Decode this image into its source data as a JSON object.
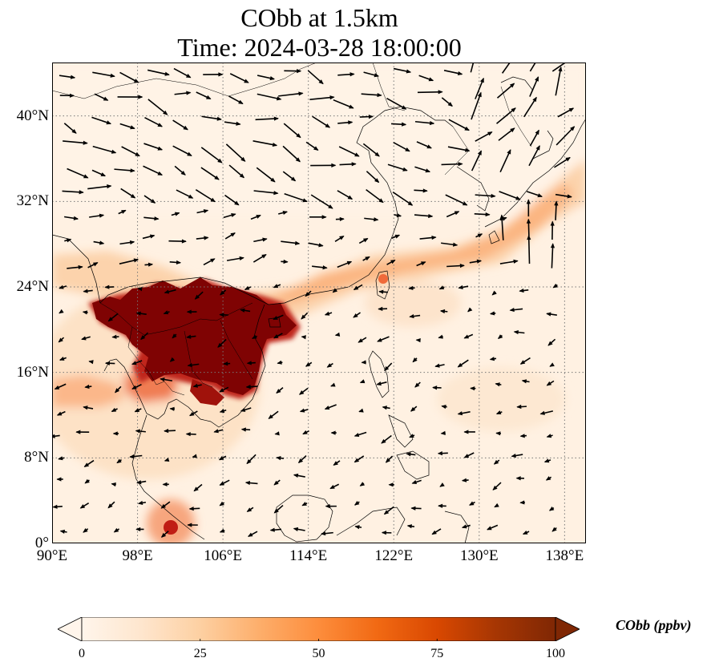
{
  "title": {
    "line1": "CObb at 1.5km",
    "line2": "Time: 2024-03-28 18:00:00"
  },
  "map": {
    "projection": "PlateCarree",
    "lon_range": [
      90,
      140
    ],
    "lat_range": [
      0,
      45
    ],
    "gridlines": "dotted",
    "lon_ticks": [
      "90°E",
      "98°E",
      "106°E",
      "114°E",
      "122°E",
      "130°E",
      "138°E"
    ],
    "lat_ticks": [
      "0°",
      "8°N",
      "16°N",
      "24°N",
      "32°N",
      "40°N"
    ],
    "lon_tick_values": [
      90,
      98,
      106,
      114,
      122,
      130,
      138
    ],
    "lat_tick_values": [
      0,
      8,
      16,
      24,
      32,
      40
    ],
    "field": "CObb concentration, high over Indochina / southern China, plume extending east over Taiwan toward Japan",
    "vectors": "wind arrows"
  },
  "colorbar": {
    "label": "CObb (ppbv)",
    "ticks": [
      "0",
      "25",
      "50",
      "75",
      "100"
    ],
    "tick_values": [
      0,
      25,
      50,
      75,
      100
    ],
    "range": [
      0,
      100
    ],
    "extend": "both",
    "colormap": [
      "#fff5eb",
      "#fee6ce",
      "#fdd0a2",
      "#fdae6b",
      "#fd8d3c",
      "#f16913",
      "#d94801",
      "#a63603",
      "#7f2704"
    ]
  }
}
